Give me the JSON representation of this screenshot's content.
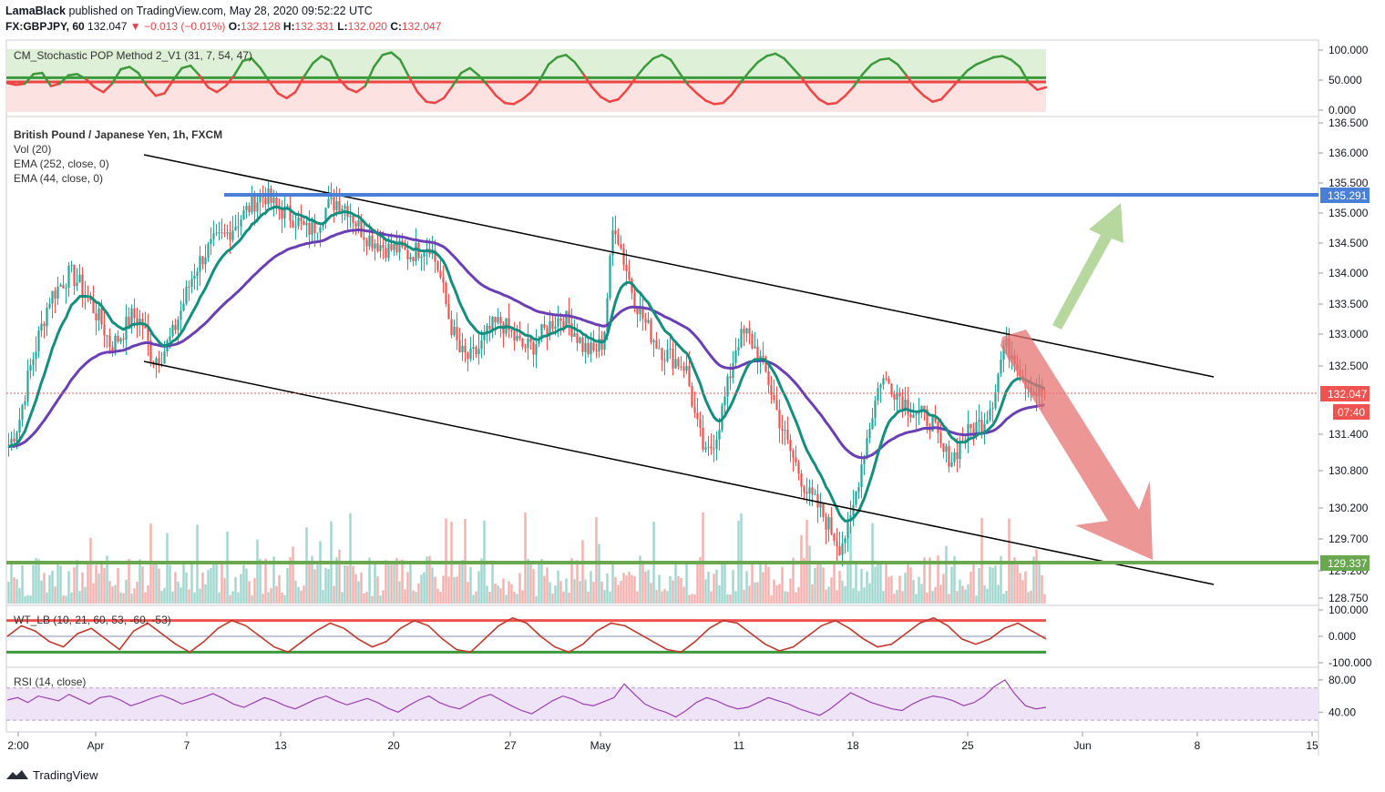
{
  "header": {
    "author": "LamaBlack",
    "published": " published on TradingView.com, May 28, 2020 09:52:22 UTC",
    "symbol": "FX:GBPJPY, 60",
    "last": "132.047",
    "change": "−0.013 (−0.01%)",
    "open_label": "O:",
    "open": "132.128",
    "high_label": "H:",
    "high": "132.331",
    "low_label": "L:",
    "low": "132.020",
    "close_label": "C:",
    "close": "132.047"
  },
  "footer": {
    "brand": "TradingView",
    "logo_icon": "tradingview-logo-icon"
  },
  "colors": {
    "up": "#26a69a",
    "down": "#ef5350",
    "ema44": "#138f7f",
    "ema252": "#6a3fb5",
    "resistance": "#4a7fd8",
    "support": "#6aa84f",
    "channel": "#000000",
    "stoch_up": "#3c9a3c",
    "stoch_down": "#ef4444",
    "rsi": "#9b3fb5",
    "wt": "#c0392b"
  },
  "chart_data": [
    {
      "type": "line",
      "pane": "stochastic",
      "title": "CM_Stochastic POP Method 2_V1 (31, 7, 54, 47)",
      "y_ticks": [
        "100.000",
        "50.000",
        "0.000"
      ],
      "ylim": [
        0,
        100
      ],
      "levels": [
        54,
        47
      ],
      "series": [
        {
          "values": [
            45,
            42,
            44,
            60,
            62,
            40,
            44,
            58,
            60,
            52,
            38,
            30,
            44,
            68,
            72,
            62,
            40,
            24,
            28,
            50,
            70,
            74,
            58,
            38,
            30,
            40,
            58,
            82,
            86,
            70,
            48,
            28,
            20,
            30,
            56,
            78,
            90,
            82,
            52,
            36,
            30,
            40,
            72,
            92,
            96,
            84,
            56,
            30,
            14,
            12,
            20,
            40,
            62,
            70,
            58,
            42,
            24,
            12,
            10,
            18,
            30,
            50,
            76,
            88,
            92,
            80,
            60,
            38,
            22,
            14,
            18,
            34,
            54,
            72,
            86,
            92,
            84,
            62,
            42,
            28,
            16,
            10,
            12,
            26,
            46,
            64,
            80,
            90,
            94,
            86,
            70,
            54,
            34,
            18,
            10,
            12,
            24,
            40,
            60,
            76,
            84,
            86,
            76,
            58,
            38,
            24,
            14,
            18,
            34,
            50,
            66,
            76,
            82,
            88,
            90,
            84,
            72,
            46,
            34,
            38
          ]
        }
      ]
    },
    {
      "type": "candlestick",
      "pane": "price",
      "title": "British Pound / Japanese Yen, 1h, FXCM",
      "indicators": [
        "Vol (20)",
        "EMA (252, close, 0)",
        "EMA (44, close, 0)"
      ],
      "y_ticks": [
        "136.500",
        "136.000",
        "135.500",
        "135.000",
        "134.500",
        "134.000",
        "133.500",
        "133.000",
        "132.500",
        "131.400",
        "130.800",
        "130.200",
        "129.700",
        "129.200",
        "128.750"
      ],
      "x_ticks": [
        "2:00",
        "Apr",
        "7",
        "13",
        "20",
        "27",
        "May",
        "11",
        "18",
        "25",
        "Jun",
        "8",
        "15"
      ],
      "ylim": [
        128.75,
        136.5
      ],
      "close_path": [
        131.2,
        131.6,
        132.4,
        133.0,
        133.6,
        133.8,
        134.0,
        133.8,
        133.5,
        133.2,
        132.8,
        133.0,
        133.3,
        133.2,
        132.6,
        132.7,
        133.0,
        133.5,
        134.0,
        134.3,
        134.5,
        134.6,
        134.8,
        135.0,
        135.2,
        135.3,
        135.1,
        135.0,
        134.9,
        134.7,
        134.8,
        135.1,
        135.2,
        135.1,
        134.8,
        134.6,
        134.5,
        134.4,
        134.4,
        134.3,
        134.4,
        134.5,
        134.0,
        133.2,
        132.7,
        132.6,
        132.8,
        133.1,
        133.2,
        133.0,
        132.8,
        132.8,
        133.0,
        133.2,
        133.3,
        133.1,
        132.8,
        132.7,
        132.9,
        134.9,
        134.2,
        133.6,
        133.2,
        132.9,
        132.7,
        132.6,
        132.5,
        131.6,
        131.0,
        131.4,
        132.1,
        132.9,
        133.0,
        132.7,
        132.3,
        131.7,
        131.2,
        130.8,
        130.4,
        130.2,
        129.9,
        129.6,
        129.9,
        130.8,
        131.6,
        132.3,
        132.2,
        132.0,
        131.8,
        131.7,
        131.6,
        131.1,
        131.0,
        131.3,
        131.5,
        131.6,
        132.0,
        132.8,
        132.7,
        132.3,
        132.1,
        132.0
      ],
      "volume_label": "Vol (20)"
    },
    {
      "type": "line",
      "pane": "wavetrend",
      "title": "WT_LB (10, 21, 60, 53, -60, -53)",
      "y_ticks": [
        "100.000",
        "0.000",
        "-100.000"
      ],
      "ylim": [
        -100,
        100
      ],
      "levels": [
        60,
        -60
      ],
      "series": [
        {
          "values": [
            0,
            40,
            20,
            -20,
            -40,
            10,
            30,
            -10,
            -50,
            20,
            50,
            10,
            -30,
            -60,
            -20,
            30,
            60,
            40,
            0,
            -40,
            -60,
            -20,
            20,
            50,
            30,
            -10,
            -40,
            -20,
            30,
            60,
            40,
            -10,
            -50,
            -60,
            -10,
            40,
            70,
            50,
            0,
            -40,
            -60,
            -30,
            20,
            50,
            40,
            10,
            -20,
            -50,
            -60,
            -20,
            30,
            60,
            50,
            10,
            -30,
            -55,
            -40,
            0,
            40,
            60,
            30,
            -10,
            -40,
            -30,
            10,
            50,
            70,
            40,
            -10,
            -30,
            -10,
            30,
            50,
            20,
            -10
          ]
        }
      ]
    },
    {
      "type": "line",
      "pane": "rsi",
      "title": "RSI (14, close)",
      "y_ticks": [
        "80.00",
        "40.00"
      ],
      "ylim": [
        20,
        90
      ],
      "levels": [
        70,
        30
      ],
      "series": [
        {
          "values": [
            55,
            58,
            52,
            60,
            57,
            54,
            62,
            56,
            50,
            58,
            60,
            55,
            48,
            52,
            57,
            61,
            56,
            50,
            54,
            58,
            63,
            57,
            50,
            46,
            52,
            58,
            54,
            48,
            44,
            50,
            56,
            60,
            54,
            49,
            53,
            57,
            52,
            45,
            40,
            48,
            55,
            60,
            52,
            47,
            44,
            51,
            58,
            62,
            55,
            48,
            42,
            38,
            46,
            54,
            60,
            56,
            50,
            48,
            53,
            58,
            75,
            62,
            50,
            44,
            40,
            34,
            42,
            52,
            58,
            54,
            48,
            44,
            46,
            52,
            58,
            54,
            50,
            44,
            40,
            36,
            44,
            54,
            64,
            58,
            52,
            48,
            44,
            42,
            50,
            56,
            60,
            58,
            54,
            48,
            52,
            60,
            72,
            80,
            62,
            48,
            44,
            46
          ]
        }
      ]
    }
  ]
}
